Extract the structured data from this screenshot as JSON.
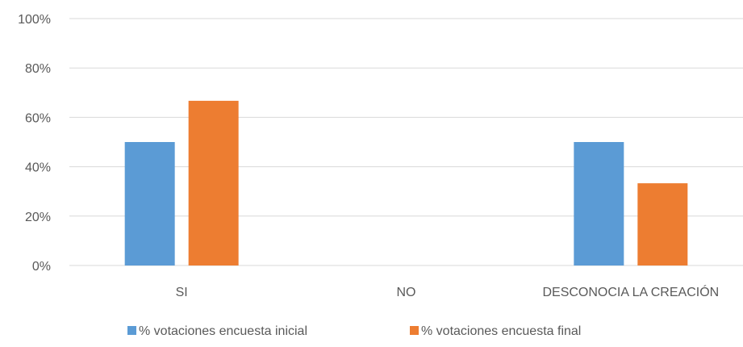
{
  "chart_data": {
    "type": "bar",
    "categories": [
      "SI",
      "NO",
      "DESCONOCIA LA CREACIÓN"
    ],
    "series": [
      {
        "name": "% votaciones encuesta inicial",
        "values": [
          50,
          0,
          50
        ],
        "color": "#5b9bd5"
      },
      {
        "name": "% votaciones encuesta final",
        "values": [
          66.7,
          0,
          33.3
        ],
        "color": "#ed7d31"
      }
    ],
    "yticks": [
      "0%",
      "20%",
      "40%",
      "60%",
      "80%",
      "100%"
    ],
    "ylim": [
      0,
      100
    ],
    "grid": true,
    "legend": "bottom"
  }
}
